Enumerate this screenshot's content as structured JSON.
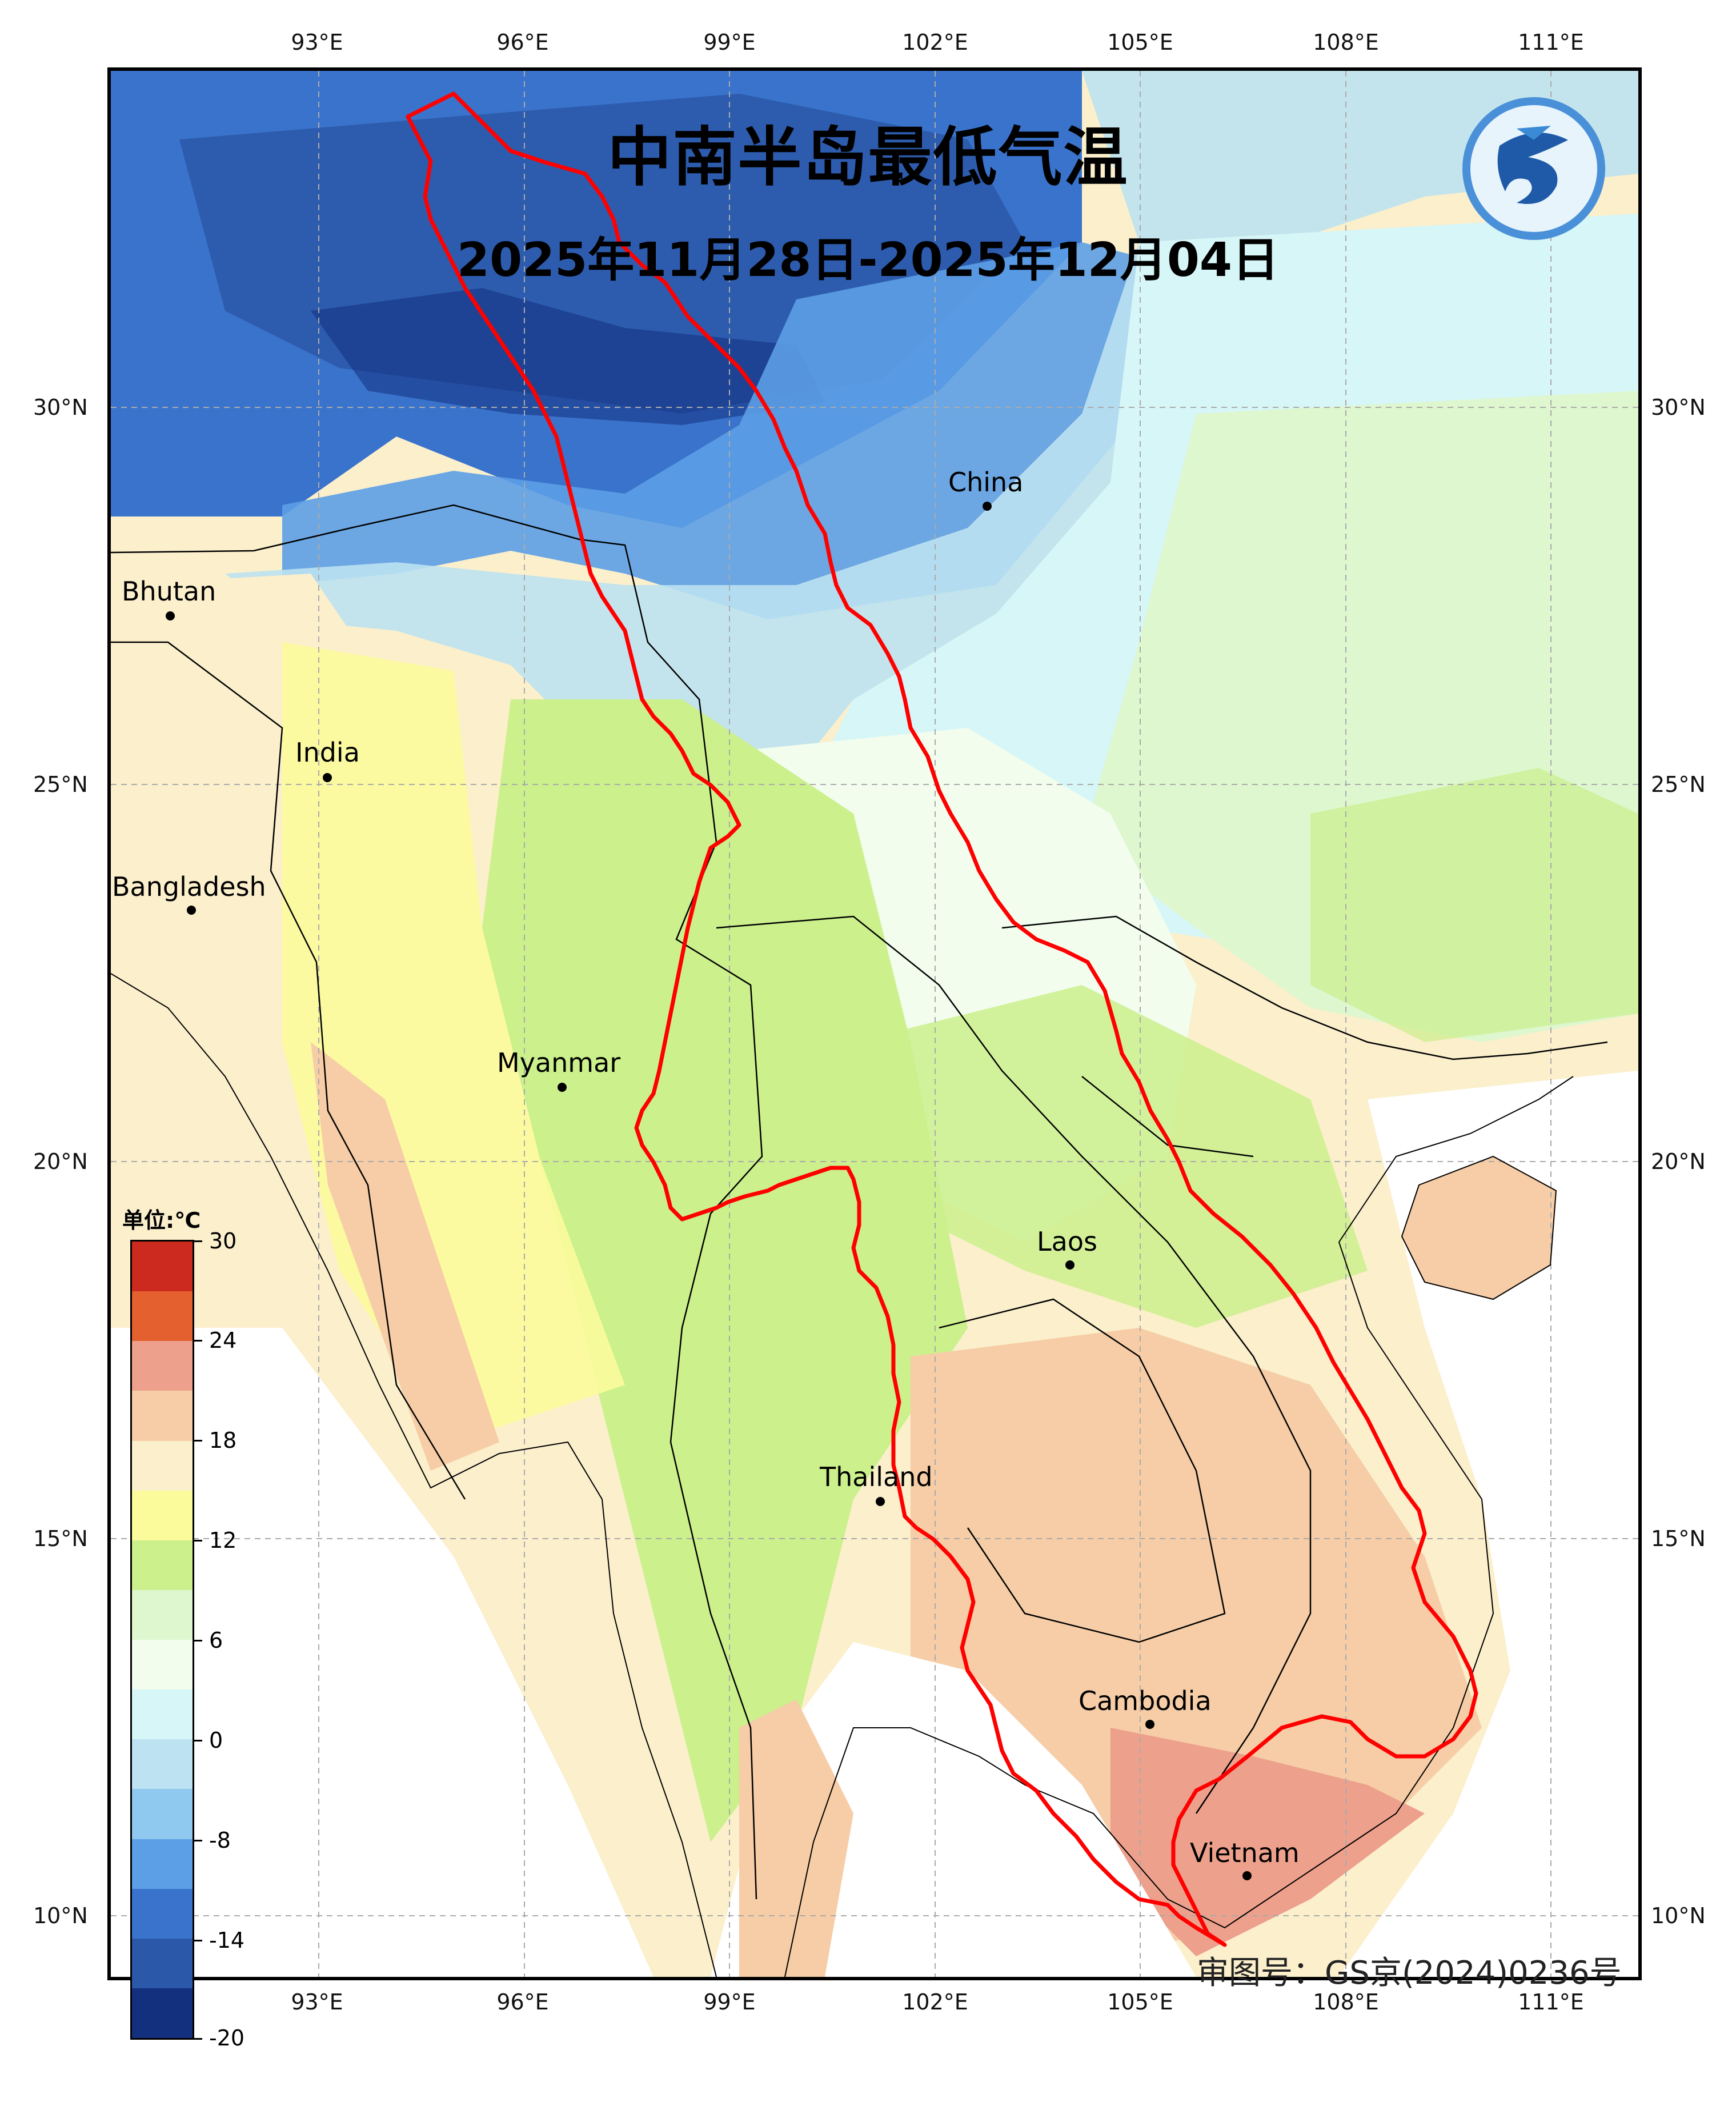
{
  "title": "中南半岛最低气温",
  "subtitle": "2025年11月28日-2025年12月04日",
  "approval_number": "审图号：GS京(2024)0236号",
  "axes": {
    "lon_ticks": [
      "93°E",
      "96°E",
      "99°E",
      "102°E",
      "105°E",
      "108°E",
      "111°E"
    ],
    "lat_ticks": [
      "30°N",
      "25°N",
      "20°N",
      "15°N",
      "10°N"
    ]
  },
  "places": [
    {
      "name": "Bhutan"
    },
    {
      "name": "India"
    },
    {
      "name": "Bangladesh"
    },
    {
      "name": "China"
    },
    {
      "name": "Myanmar"
    },
    {
      "name": "Laos"
    },
    {
      "name": "Thailand"
    },
    {
      "name": "Cambodia"
    },
    {
      "name": "Vietnam"
    }
  ],
  "legend": {
    "unit": "单位:℃",
    "labels": [
      "30",
      "24",
      "18",
      "12",
      "6",
      "0",
      "-8",
      "-14",
      "-20"
    ],
    "colors": [
      "#cc2a1e",
      "#e5602f",
      "#eda08c",
      "#f6cda6",
      "#fbefcc",
      "#fbfb9c",
      "#cbf08c",
      "#def7cf",
      "#f2fdee",
      "#d7f6f8",
      "#bde2f1",
      "#8fc9ef",
      "#5c9fe6",
      "#3a73cc",
      "#2b58a8",
      "#13307f"
    ]
  },
  "colors": {
    "basin_outline": "#ff0000",
    "cold": "#2b58a8",
    "warm": "#f6cda6"
  }
}
